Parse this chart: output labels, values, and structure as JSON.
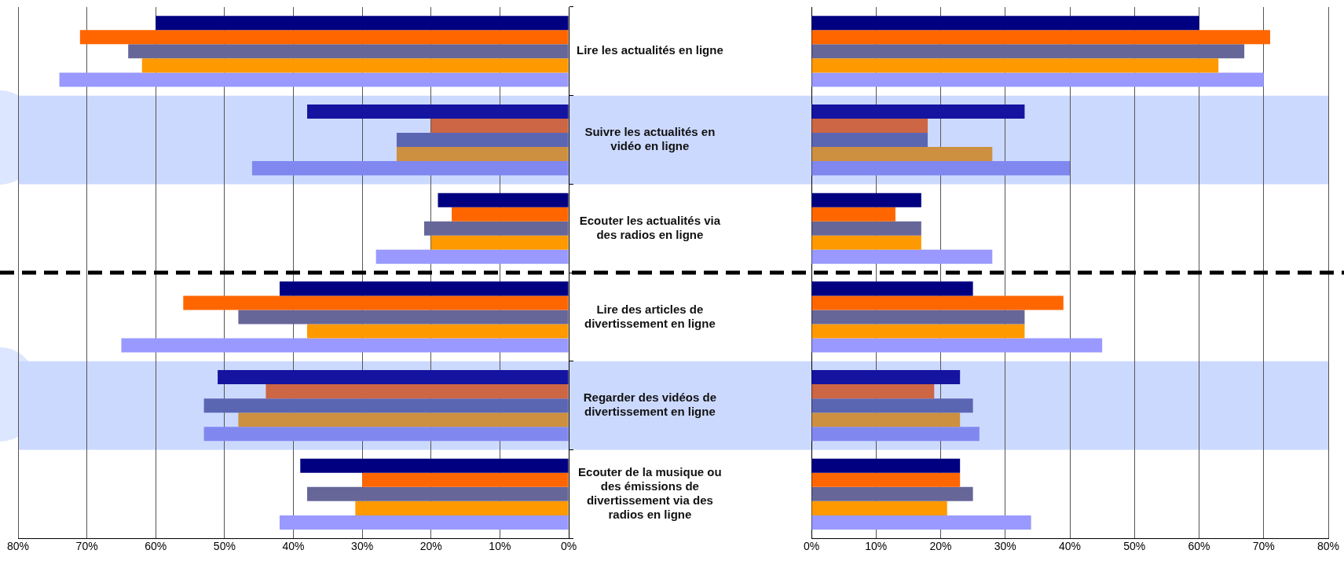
{
  "chart_data": [
    {
      "type": "bar",
      "orientation": "horizontal",
      "categories": [
        "Lire les actualités en ligne",
        "Suivre les actualités en vidéo en ligne",
        "Ecouter les actualités via des radios en ligne",
        "Lire des articles de divertissement en ligne",
        "Regarder des vidéos de divertissement en ligne",
        "Ecouter de la musique ou des émissions de divertissement via des radios en ligne"
      ],
      "series": [
        {
          "colors": [
            "#000080",
            "#1414a0",
            "#000080",
            "#000080",
            "#1414a0",
            "#000080"
          ],
          "values": [
            60,
            38,
            19,
            42,
            51,
            39
          ]
        },
        {
          "colors": [
            "#ff6600",
            "#cc6644",
            "#ff6600",
            "#ff6600",
            "#cc6644",
            "#ff6600"
          ],
          "values": [
            71,
            20,
            17,
            56,
            44,
            30
          ]
        },
        {
          "colors": [
            "#666699",
            "#5b66b3",
            "#666699",
            "#666699",
            "#5b66b3",
            "#666699"
          ],
          "values": [
            64,
            25,
            21,
            48,
            53,
            38
          ]
        },
        {
          "colors": [
            "#ff9900",
            "#cc9040",
            "#ff9900",
            "#ff9900",
            "#cc9040",
            "#ff9900"
          ],
          "values": [
            62,
            25,
            20,
            38,
            48,
            31
          ]
        },
        {
          "colors": [
            "#9999ff",
            "#8088f0",
            "#9999ff",
            "#9999ff",
            "#8088f0",
            "#9999ff"
          ],
          "values": [
            74,
            46,
            28,
            65,
            53,
            42
          ]
        }
      ],
      "xlim": [
        80,
        0
      ],
      "xticks": [
        {
          "value": 80,
          "label": "80%"
        },
        {
          "value": 70,
          "label": "70%"
        },
        {
          "value": 60,
          "label": "60%"
        },
        {
          "value": 50,
          "label": "50%"
        },
        {
          "value": 40,
          "label": "40%"
        },
        {
          "value": 30,
          "label": "30%"
        },
        {
          "value": 20,
          "label": "20%"
        },
        {
          "value": 10,
          "label": "10%"
        },
        {
          "value": 0,
          "label": "0%"
        }
      ],
      "grid": "x",
      "legend": false,
      "bands": [
        {
          "axis": "y",
          "from": "Suivre les actualités en vidéo en ligne",
          "to": "Suivre les actualités en vidéo en ligne",
          "color": "#ccd9ff"
        },
        {
          "axis": "y",
          "from": "Regarder des vidéos de divertissement en ligne",
          "to": "Regarder des vidéos de divertissement en ligne",
          "color": "#ccd9ff"
        }
      ]
    },
    {
      "type": "bar",
      "orientation": "horizontal",
      "categories": [
        "Lire les actualités en ligne",
        "Suivre les actualités en vidéo en ligne",
        "Ecouter les actualités via des radios en ligne",
        "Lire des articles de divertissement en ligne",
        "Regarder des vidéos de divertissement en ligne",
        "Ecouter de la musique ou des émissions de divertissement via des radios en ligne"
      ],
      "series": [
        {
          "colors": [
            "#000080",
            "#1414a0",
            "#000080",
            "#000080",
            "#1414a0",
            "#000080"
          ],
          "values": [
            60,
            33,
            17,
            25,
            23,
            23
          ]
        },
        {
          "colors": [
            "#ff6600",
            "#cc6644",
            "#ff6600",
            "#ff6600",
            "#cc6644",
            "#ff6600"
          ],
          "values": [
            71,
            18,
            13,
            39,
            19,
            23
          ]
        },
        {
          "colors": [
            "#666699",
            "#5b66b3",
            "#666699",
            "#666699",
            "#5b66b3",
            "#666699"
          ],
          "values": [
            67,
            18,
            17,
            33,
            25,
            25
          ]
        },
        {
          "colors": [
            "#ff9900",
            "#cc9040",
            "#ff9900",
            "#ff9900",
            "#cc9040",
            "#ff9900"
          ],
          "values": [
            63,
            28,
            17,
            33,
            23,
            21
          ]
        },
        {
          "colors": [
            "#9999ff",
            "#8088f0",
            "#9999ff",
            "#9999ff",
            "#8088f0",
            "#9999ff"
          ],
          "values": [
            70,
            40,
            28,
            45,
            26,
            34
          ]
        }
      ],
      "xlim": [
        0,
        80
      ],
      "xticks": [
        {
          "value": 0,
          "label": "0%"
        },
        {
          "value": 10,
          "label": "10%"
        },
        {
          "value": 20,
          "label": "20%"
        },
        {
          "value": 30,
          "label": "30%"
        },
        {
          "value": 40,
          "label": "40%"
        },
        {
          "value": 50,
          "label": "50%"
        },
        {
          "value": 60,
          "label": "60%"
        },
        {
          "value": 70,
          "label": "70%"
        },
        {
          "value": 80,
          "label": "80%"
        }
      ],
      "grid": "x",
      "legend": false,
      "tick_labels": "x",
      "bands": [
        {
          "axis": "y",
          "from": "Suivre les actualités en vidéo en ligne",
          "to": "Suivre les actualités en vidéo en ligne",
          "color": "#ccd9ff"
        },
        {
          "axis": "y",
          "from": "Regarder des vidéos de divertissement en ligne",
          "to": "Regarder des vidéos de divertissement en ligne",
          "color": "#ccd9ff"
        }
      ]
    }
  ]
}
